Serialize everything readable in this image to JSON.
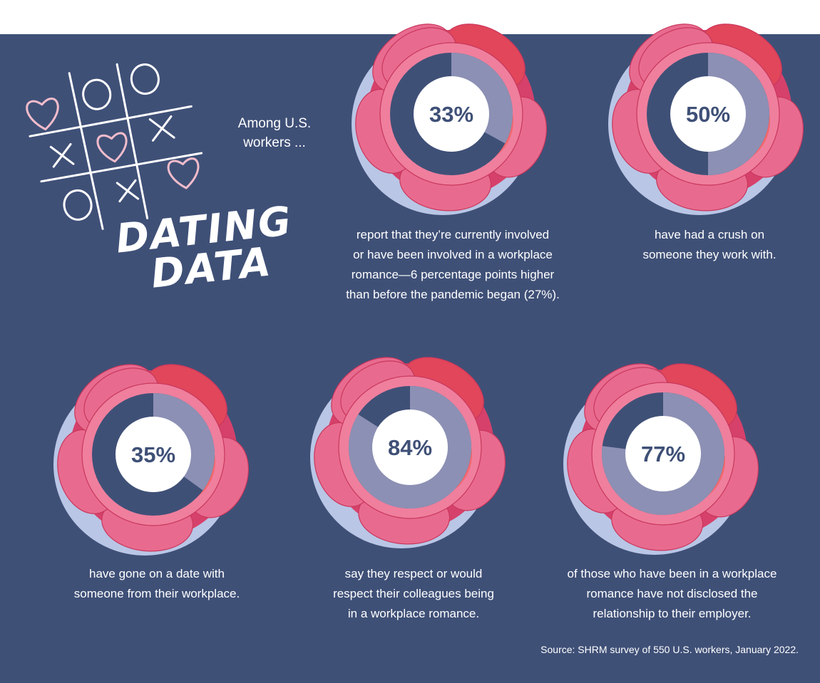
{
  "intro": "Among U.S. workers ...",
  "title": [
    "DATING",
    "DATA"
  ],
  "source": "Source: SHRM survey of 550 U.S. workers, January 2022.",
  "colors": {
    "background": "#3f5077",
    "top_band": "#ffffff",
    "petal_pink": "#e86b8f",
    "petal_dark": "#d6416b",
    "petal_red": "#e1465a",
    "petal_shadow": "#b9c6e6",
    "ring_highlight": "#8c90b4",
    "ring_base": "#3f5077",
    "center": "#ffffff",
    "label_text": "#3f5077",
    "doodle_heart": "#f3bccb"
  },
  "icons": [
    "tic-tac-toe-doodle",
    "heart-icon",
    "o-icon",
    "x-icon"
  ],
  "chart_data": {
    "type": "pie",
    "unit": "%",
    "items": [
      {
        "label": "33%",
        "value": 33,
        "caption": [
          "report that they’re currently involved",
          "or have been involved in a workplace",
          "romance—6 percentage points higher",
          "than before the pandemic began (27%)."
        ]
      },
      {
        "label": "50%",
        "value": 50,
        "caption": [
          "have had a crush on",
          "someone they work with."
        ]
      },
      {
        "label": "35%",
        "value": 35,
        "caption": [
          "have gone on a date with",
          "someone from their workplace."
        ]
      },
      {
        "label": "84%",
        "value": 84,
        "caption": [
          "say they respect or would",
          "respect their colleagues being",
          "in a workplace romance."
        ]
      },
      {
        "label": "77%",
        "value": 77,
        "caption": [
          "of those who have been in a workplace",
          "romance have not disclosed the",
          "relationship to their employer."
        ]
      }
    ]
  }
}
